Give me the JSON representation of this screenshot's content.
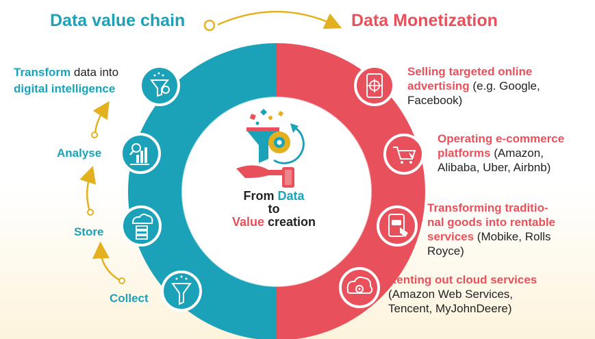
{
  "header": {
    "left_title": "Data value chain",
    "right_title": "Data Monetization"
  },
  "center": {
    "line1_a": "From",
    "line1_b": "Data",
    "line2": "to",
    "line3_a": "Value",
    "line3_b": "creation"
  },
  "chain": [
    {
      "bold": "Transform",
      "rest": " data into",
      "line2": "digital intelligence",
      "icon": "funnel-gear-icon"
    },
    {
      "bold": "Analyse",
      "icon": "bar-chart-magnifier-icon"
    },
    {
      "bold": "Store",
      "icon": "cloud-server-icon"
    },
    {
      "bold": "Collect",
      "icon": "funnel-icon"
    }
  ],
  "monetization": [
    {
      "bold1": "Selling targeted online",
      "bold2": "advertising",
      "rest2": " (e.g. Google,",
      "line3": "Facebook)",
      "icon": "phone-target-icon"
    },
    {
      "bold1": "Operating e-commerce",
      "bold2": "platforms",
      "rest2": " (Amazon,",
      "line3": "Alibaba, Uber, Airbnb)",
      "icon": "shopping-cart-icon"
    },
    {
      "bold1": "Transforming traditio-",
      "bold2": "nal goods into rentable",
      "bold3": "services",
      "rest3": " (Mobike, Rolls",
      "line4": "Royce)",
      "icon": "tablet-car-icon"
    },
    {
      "bold1": "Renting out cloud services",
      "line2": "(Amazon Web Services,",
      "line3": "Tencent, MyJohnDeere)",
      "icon": "cloud-gear-icon"
    }
  ],
  "colors": {
    "teal": "#1ba2b8",
    "red": "#e8515b",
    "gold": "#e3b11f"
  }
}
